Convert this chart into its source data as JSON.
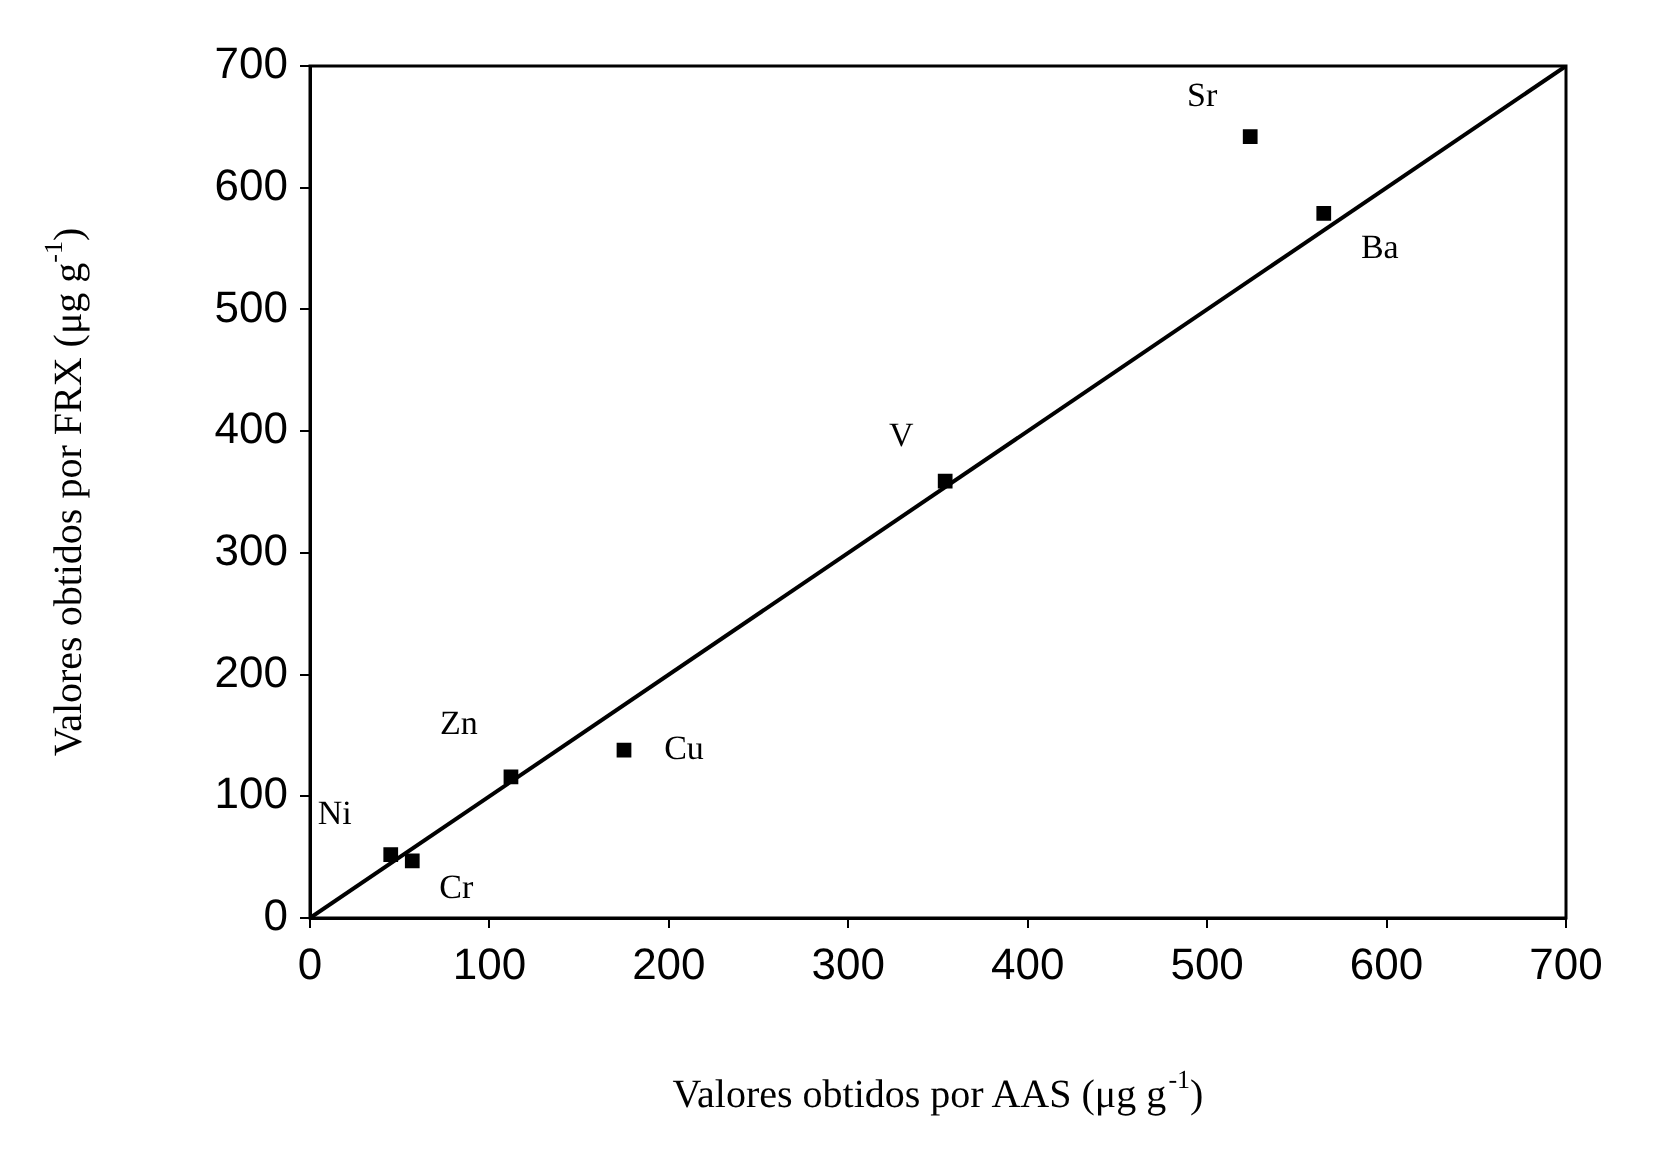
{
  "chart_data": {
    "type": "scatter",
    "xlabel": "Valores obtidos por AAS (μg g$^{-1}$)",
    "ylabel": "Valores obtidos por FRX (μg g$^{-1}$)",
    "xlim": [
      0,
      700
    ],
    "xticks": [
      0,
      100,
      200,
      300,
      400,
      500,
      600,
      700
    ],
    "ylim": [
      0,
      700
    ],
    "yticks": [
      0,
      100,
      200,
      300,
      400,
      500,
      600,
      700
    ],
    "grid": false,
    "legend": false,
    "series": [
      {
        "color": "#000000",
        "marker": "square",
        "x": [
          45,
          57,
          112,
          175,
          354,
          524,
          565
        ],
        "values": [
          52,
          47,
          116,
          138,
          359,
          642,
          579
        ]
      },
      {
        "type": "line",
        "color": "#000000",
        "marker": "none",
        "line_style": "solid",
        "x": [
          0,
          700
        ],
        "values": [
          0,
          700
        ]
      }
    ],
    "annotations": [
      {
        "text": "Ni",
        "x": 45,
        "y": 52
      },
      {
        "text": "Cr",
        "x": 57,
        "y": 47
      },
      {
        "text": "Zn",
        "x": 112,
        "y": 116
      },
      {
        "text": "Cu",
        "x": 175,
        "y": 138
      },
      {
        "text": "V",
        "x": 354,
        "y": 359
      },
      {
        "text": "Sr",
        "x": 524,
        "y": 642
      },
      {
        "text": "Ba",
        "x": 565,
        "y": 579
      }
    ]
  }
}
